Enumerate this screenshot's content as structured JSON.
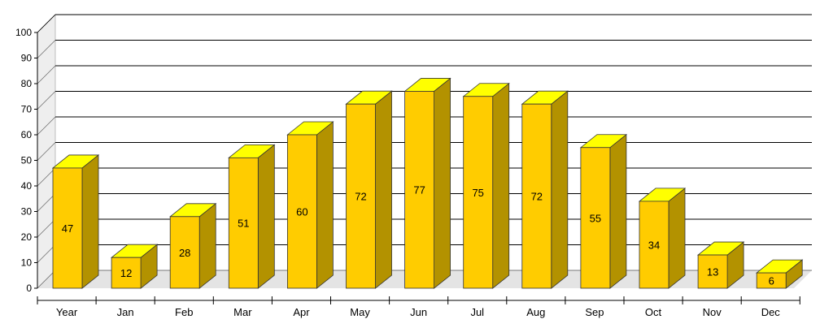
{
  "chart_data": {
    "type": "bar",
    "style": "3d",
    "categories": [
      "Year",
      "Jan",
      "Feb",
      "Mar",
      "Apr",
      "May",
      "Jun",
      "Jul",
      "Aug",
      "Sep",
      "Oct",
      "Nov",
      "Dec"
    ],
    "values": [
      47,
      12,
      28,
      51,
      60,
      72,
      77,
      75,
      72,
      55,
      34,
      13,
      6
    ],
    "title": "",
    "xlabel": "",
    "ylabel": "",
    "ylim": [
      0,
      100
    ],
    "yticks": [
      0,
      10,
      20,
      30,
      40,
      50,
      60,
      70,
      80,
      90,
      100
    ],
    "grid": true,
    "legend": "none",
    "colors": {
      "bar_front": "#ffcc00",
      "bar_top": "#ffff00",
      "bar_side": "#b39200",
      "bar_outline": "#333333",
      "grid": "#000000",
      "back_wall": "#ffffff",
      "side_wall": "#eeeeee",
      "floor": "#e4e4e4"
    }
  }
}
